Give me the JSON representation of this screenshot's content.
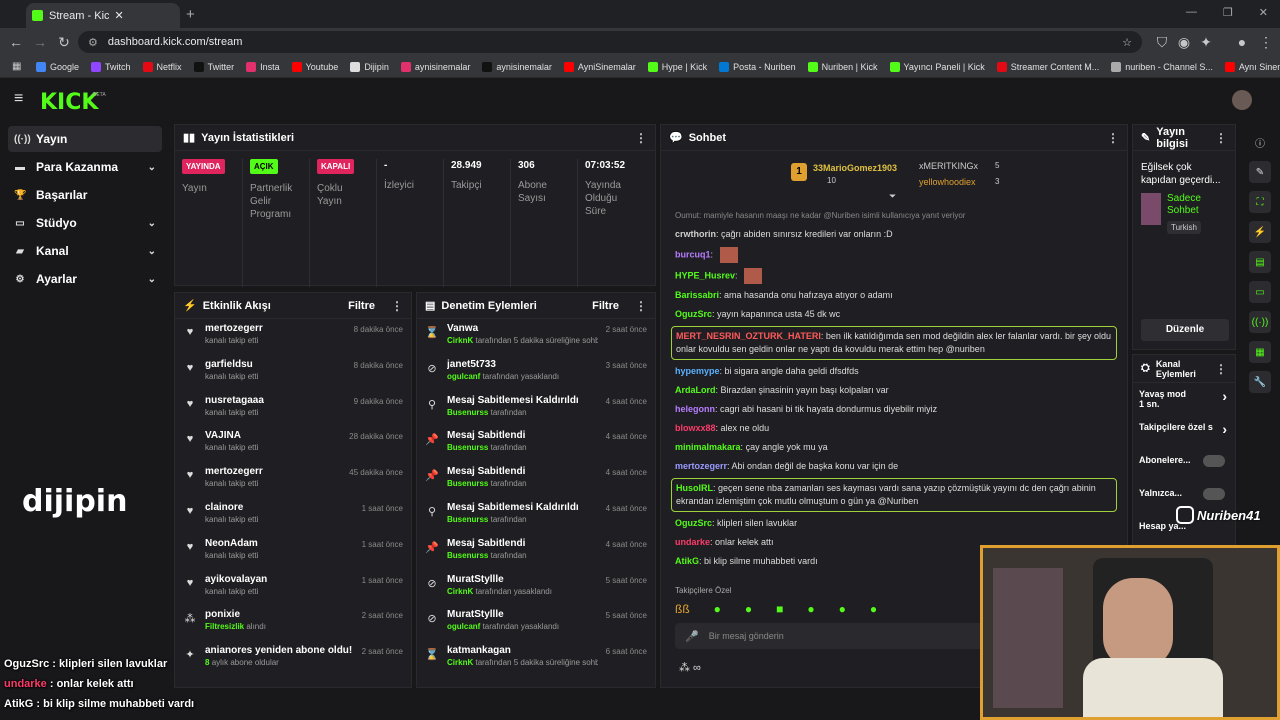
{
  "browser": {
    "tab_title": "Stream - Kick Dashboard",
    "url": "dashboard.kick.com/stream",
    "bookmarks": [
      {
        "label": "Google",
        "color": "#4285f4"
      },
      {
        "label": "Twitch",
        "color": "#9146ff"
      },
      {
        "label": "Netflix",
        "color": "#e50914"
      },
      {
        "label": "Twitter",
        "color": "#111111"
      },
      {
        "label": "Insta",
        "color": "#e1306c"
      },
      {
        "label": "Youtube",
        "color": "#ff0000"
      },
      {
        "label": "Dijipin",
        "color": "#dddddd"
      },
      {
        "label": "aynisinemalar",
        "color": "#e1306c"
      },
      {
        "label": "aynisinemalar",
        "color": "#111111"
      },
      {
        "label": "AyniSinemalar",
        "color": "#ff0000"
      },
      {
        "label": "Hype | Kick",
        "color": "#53fc18"
      },
      {
        "label": "Posta - Nuriben",
        "color": "#0078d4"
      },
      {
        "label": "Nuriben | Kick",
        "color": "#53fc18"
      },
      {
        "label": "Yayıncı Paneli | Kick",
        "color": "#53fc18"
      },
      {
        "label": "Streamer Content M...",
        "color": "#e50914"
      },
      {
        "label": "nuriben - Channel S...",
        "color": "#aaaaaa"
      },
      {
        "label": "Aynı Sinemalar - Ça...",
        "color": "#ff0000"
      }
    ]
  },
  "app": {
    "logo": "KICK",
    "beta": "BETA",
    "accent": "#53fc18"
  },
  "sidebar": {
    "items": [
      {
        "label": "Yayın",
        "icon": "broadcast-icon",
        "chev": ""
      },
      {
        "label": "Para Kazanma",
        "icon": "money-icon",
        "chev": "⌄"
      },
      {
        "label": "Başarılar",
        "icon": "trophy-icon",
        "chev": ""
      },
      {
        "label": "Stüdyo",
        "icon": "studio-icon",
        "chev": "⌄"
      },
      {
        "label": "Kanal",
        "icon": "channel-icon",
        "chev": "⌄"
      },
      {
        "label": "Ayarlar",
        "icon": "gear-icon",
        "chev": "⌄"
      }
    ]
  },
  "stats": {
    "title": "Yayın İstatistikleri",
    "cols": [
      {
        "badge": "YAYINDA",
        "badge_color": "#e0245e",
        "value": "",
        "label": "Yayın"
      },
      {
        "badge": "AÇIK",
        "badge_color": "#53fc18",
        "value": "",
        "label": "Partnerlik Gelir Programı"
      },
      {
        "badge": "KAPALI",
        "badge_color": "#e0245e",
        "value": "",
        "label": "Çoklu Yayın"
      },
      {
        "badge": "",
        "badge_color": "",
        "value": "-",
        "label": "İzleyici"
      },
      {
        "badge": "",
        "badge_color": "",
        "value": "28.949",
        "label": "Takipçi"
      },
      {
        "badge": "",
        "badge_color": "",
        "value": "306",
        "label": "Abone Sayısı"
      },
      {
        "badge": "",
        "badge_color": "",
        "value": "07:03:52",
        "label": "Yayında Olduğu Süre"
      }
    ]
  },
  "activity": {
    "title": "Etkinlik Akışı",
    "filter": "Filtre",
    "items": [
      {
        "icon": "heart-icon",
        "name": "mertozegerr",
        "sub": "kanalı takip etti",
        "subname": "",
        "time": "8 dakika önce"
      },
      {
        "icon": "heart-icon",
        "name": "garfieldsu",
        "sub": "kanalı takip etti",
        "subname": "",
        "time": "8 dakika önce"
      },
      {
        "icon": "heart-icon",
        "name": "nusretagaaa",
        "sub": "kanalı takip etti",
        "subname": "",
        "time": "9 dakika önce"
      },
      {
        "icon": "heart-icon",
        "name": "VAJINA",
        "sub": "kanalı takip etti",
        "subname": "",
        "time": "28 dakika önce"
      },
      {
        "icon": "heart-icon",
        "name": "mertozegerr",
        "sub": "kanalı takip etti",
        "subname": "",
        "time": "45 dakika önce"
      },
      {
        "icon": "heart-icon",
        "name": "clainore",
        "sub": "kanalı takip etti",
        "subname": "",
        "time": "1 saat önce"
      },
      {
        "icon": "heart-icon",
        "name": "NeonAdam",
        "sub": "kanalı takip etti",
        "subname": "",
        "time": "1 saat önce"
      },
      {
        "icon": "heart-icon",
        "name": "ayikovalayan",
        "sub": "kanalı takip etti",
        "subname": "",
        "time": "1 saat önce"
      },
      {
        "icon": "gift-icon",
        "name": "ponixie",
        "sub": "alındı",
        "subname": "Filtresizlik",
        "time": "2 saat önce"
      },
      {
        "icon": "star-icon",
        "name": "anianores yeniden abone oldu!",
        "sub": "aylık abone oldular",
        "subname": "8",
        "time": "2 saat önce"
      }
    ]
  },
  "moderation": {
    "title": "Denetim Eylemleri",
    "filter": "Filtre",
    "items": [
      {
        "icon": "hourglass-icon",
        "name": "Vanwa",
        "subname": "CirknK",
        "sub": "tarafından 5 dakika süreliğine sohbetten uzaklaştırıldı",
        "time": "2 saat önce"
      },
      {
        "icon": "ban-icon",
        "name": "janet5t733",
        "subname": "ogulcanf",
        "sub": "tarafından yasaklandı",
        "time": "3 saat önce"
      },
      {
        "icon": "unpin-icon",
        "name": "Mesaj Sabitlemesi Kaldırıldı",
        "subname": "Busenurss",
        "sub": "tarafından",
        "time": "4 saat önce"
      },
      {
        "icon": "pin-icon",
        "name": "Mesaj Sabitlendi",
        "subname": "Busenurss",
        "sub": "tarafından",
        "time": "4 saat önce"
      },
      {
        "icon": "pin-icon",
        "name": "Mesaj Sabitlendi",
        "subname": "Busenurss",
        "sub": "tarafından",
        "time": "4 saat önce"
      },
      {
        "icon": "unpin-icon",
        "name": "Mesaj Sabitlemesi Kaldırıldı",
        "subname": "Busenurss",
        "sub": "tarafından",
        "time": "4 saat önce"
      },
      {
        "icon": "pin-icon",
        "name": "Mesaj Sabitlendi",
        "subname": "Busenurss",
        "sub": "tarafından",
        "time": "4 saat önce"
      },
      {
        "icon": "ban-icon",
        "name": "MuratStyllle",
        "subname": "CirknK",
        "sub": "tarafından yasaklandı",
        "time": "5 saat önce"
      },
      {
        "icon": "ban-icon",
        "name": "MuratStyllle",
        "subname": "ogulcanf",
        "sub": "tarafından yasaklandı",
        "time": "5 saat önce"
      },
      {
        "icon": "hourglass-icon",
        "name": "katmankagan",
        "subname": "CirknK",
        "sub": "tarafından 5 dakika süreliğine sohbetten",
        "time": "6 saat önce"
      }
    ]
  },
  "chat": {
    "title": "Sohbet",
    "leaders": [
      {
        "name": "33MarioGomez1903",
        "count": "10"
      },
      {
        "name": "xMERITKINGx",
        "count": "5"
      },
      {
        "name": "yellowhoodiex",
        "count": "3"
      }
    ],
    "reply_hint": "Oumut: mamiyle hasanın maaşı ne kadar @Nuriben isimli kullanıcıya yanıt veriyor",
    "messages": [
      {
        "user": "crwthorin",
        "color": "#cfcfcf",
        "text": "çağrı abiden sınırsız kredileri var onların :D",
        "hl": false
      },
      {
        "user": "burcuq1",
        "color": "#b57cff",
        "text": "",
        "hl": false
      },
      {
        "user": "HYPE_Husrev",
        "color": "#53fc18",
        "text": "",
        "hl": false
      },
      {
        "user": "Barissabri",
        "color": "#53fc18",
        "text": "ama hasanda onu hafızaya atıyor o adamı",
        "hl": false
      },
      {
        "user": "OguzSrc",
        "color": "#53fc18",
        "text": "yayın kapanınca usta 45 dk wc",
        "hl": false
      },
      {
        "user": "MERT_NESRIN_OZTURK_HATERI",
        "color": "#ff5a5a",
        "text": "ben ilk katıldığımda sen mod değildin alex ler falanlar vardı. bir şey oldu onlar kovuldu sen geldin onlar ne yaptı da kovuldu merak ettim hep @nuriben",
        "hl": true
      },
      {
        "user": "hypemype",
        "color": "#5ab0ff",
        "text": "bi sigara angle daha geldi dfsdfds",
        "hl": false
      },
      {
        "user": "ArdaLord",
        "color": "#53fc18",
        "text": "Birazdan şinasinin yayın başı kolpaları var",
        "hl": false
      },
      {
        "user": "helegonn",
        "color": "#b57cff",
        "text": "cagri abi hasani bi tik hayata dondurmus diyebilir miyiz",
        "hl": false
      },
      {
        "user": "blowxx88",
        "color": "#ff3a6a",
        "text": "alex ne oldu",
        "hl": false
      },
      {
        "user": "minimalmakara",
        "color": "#53fc18",
        "text": "çay angle yok mu ya",
        "hl": false
      },
      {
        "user": "mertozegerr",
        "color": "#9a9aff",
        "text": "Abi ondan değil de başka konu var için de",
        "hl": false
      },
      {
        "user": "HusolRL",
        "color": "#53fc18",
        "text": "geçen sene nba zamanları ses kayması vardı sana yazıp çözmüştük yayını dc den çağrı abinin ekrandan izlemiştim çok mutlu olmuştum o gün ya @Nuriben",
        "hl": true
      },
      {
        "user": "OguzSrc",
        "color": "#53fc18",
        "text": "klipleri silen lavuklar",
        "hl": false
      },
      {
        "user": "undarke",
        "color": "#ff3a6a",
        "text": "onlar kelek attı",
        "hl": false
      },
      {
        "user": "AtikG",
        "color": "#53fc18",
        "text": "bi klip silme muhabbeti vardı",
        "hl": false
      }
    ],
    "followers_only": "Takipçilere Özel",
    "input_placeholder": "Bir mesaj gönderin"
  },
  "info": {
    "title": "Yayın bilgisi",
    "stream_title": "Eğilsek çok kapıdan geçerdi...",
    "category": "Sadece Sohbet",
    "language": "Turkish",
    "edit": "Düzenle"
  },
  "channel_actions": {
    "title": "Kanal Eylemleri",
    "items": [
      {
        "label": "Yavaş mod",
        "sub": "1 sn.",
        "kind": "arrow"
      },
      {
        "label": "Takipçilere özel s",
        "sub": "",
        "kind": "arrow"
      },
      {
        "label": "Abonelere...",
        "sub": "",
        "kind": "toggle"
      },
      {
        "label": "Yalnızca...",
        "sub": "",
        "kind": "toggle"
      },
      {
        "label": "Hesap ya...",
        "sub": "",
        "kind": "none"
      }
    ]
  },
  "overlay": {
    "brand": "dijipin",
    "handle": "Nuriben41",
    "chat": [
      {
        "user": "OguzSrc",
        "text": "klipleri silen lavuklar",
        "color": "#ffffff"
      },
      {
        "user": "undarke",
        "text": "onlar kelek attı",
        "color": "#ff3a6a"
      },
      {
        "user": "AtikG",
        "text": "bi klip silme muhabbeti vardı",
        "color": "#ffffff"
      }
    ]
  }
}
